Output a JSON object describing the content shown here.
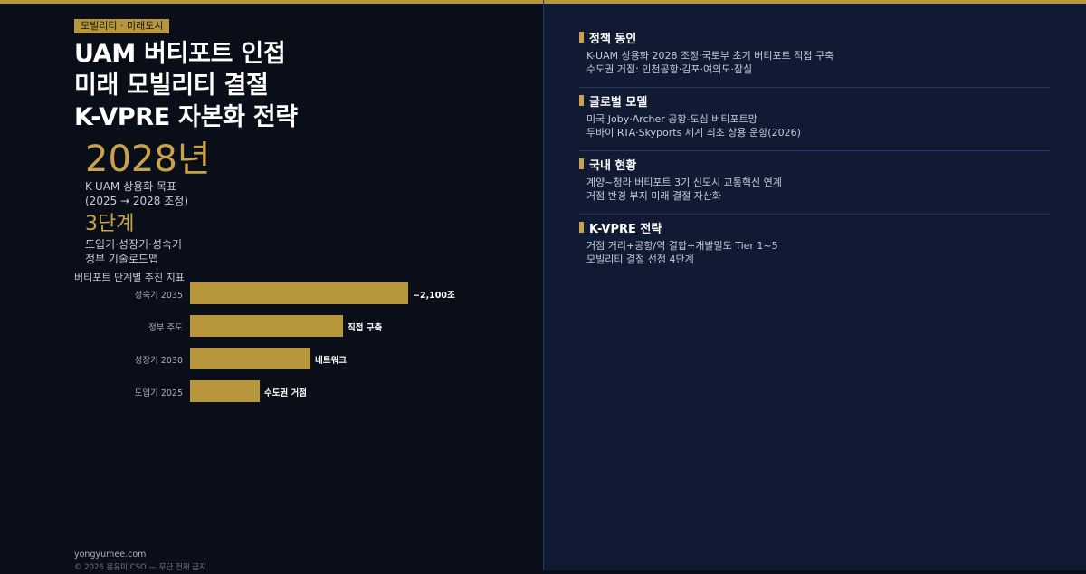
{
  "tag": "모빌리티 · 미래도시",
  "title_lines": [
    "UAM 버티포트 인접",
    "미래 모빌리티 결절",
    "K-VPRE 자본화 전략"
  ],
  "stat_primary": {
    "value": "2028년",
    "label_lines": [
      "K-UAM 상용화 목표",
      "(2025 → 2028 조정)"
    ]
  },
  "stat_secondary": {
    "value": "3단계",
    "label_lines": [
      "도입기·성장기·성숙기",
      "정부 기술로드맵"
    ]
  },
  "chart_data": {
    "type": "bar",
    "title": "버티포트 단계별 추진 지표",
    "categories": [
      "성숙기 2035",
      "정부 주도",
      "성장기 2030",
      "도입기 2025"
    ],
    "values": [
      100,
      70,
      55,
      32
    ],
    "data_labels": [
      "~2,100조",
      "직접 구축",
      "네트워크",
      "수도권 거점"
    ],
    "color": "#b8963c"
  },
  "footer": {
    "site": "yongyumee.com",
    "copyright": "© 2026 용유미 CSO — 무단 전재 금지"
  },
  "sections": [
    {
      "title": "정책 동인",
      "lines": [
        "K-UAM 상용화 2028 조정·국토부 초기 버티포트 직접 구축",
        "수도권 거점: 인천공항·김포·여의도·잠실"
      ]
    },
    {
      "title": "글로벌 모델",
      "lines": [
        "미국 Joby·Archer 공항-도심 버티포트망",
        "두바이 RTA·Skyports 세계 최초 상용 운항(2026)"
      ]
    },
    {
      "title": "국내 현황",
      "lines": [
        "계양~청라 버티포트 3기 신도시 교통혁신 연계",
        "거점 반경 부지 미래 결절 자산화"
      ]
    },
    {
      "title": "K-VPRE 전략",
      "lines": [
        "거점 거리+공항/역 결합+개발밀도 Tier 1~5",
        "모빌리티 결절 선점 4단계"
      ]
    }
  ],
  "colors": {
    "accent": "#b8963c",
    "left_bg": "#0a0e18",
    "right_bg": "#101b33"
  }
}
